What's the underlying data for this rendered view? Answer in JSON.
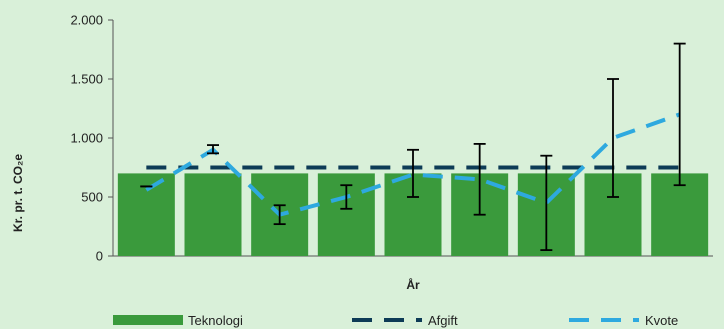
{
  "chart_data": {
    "type": "bar",
    "title": "",
    "xlabel": "År",
    "ylabel": "Kr. pr. t. CO₂e",
    "ylim": [
      0,
      2000
    ],
    "yticks": [
      0,
      500,
      1000,
      1500,
      2000
    ],
    "ytick_labels": [
      "0",
      "500",
      "1.000",
      "1.500",
      "2.000"
    ],
    "grid": false,
    "legend_position": "bottom",
    "categories": [
      "",
      "",
      "",
      "",
      "",
      "",
      "",
      "",
      ""
    ],
    "series": [
      {
        "name": "Teknologi",
        "kind": "bar",
        "color": "#3a9a3c",
        "values": [
          700,
          700,
          700,
          700,
          700,
          700,
          700,
          700,
          700
        ]
      },
      {
        "name": "Afgift",
        "kind": "dashed-line",
        "color": "#0d3b56",
        "values": [
          750,
          750,
          750,
          750,
          750,
          750,
          750,
          750,
          750
        ]
      },
      {
        "name": "Kvote",
        "kind": "dashed-line",
        "color": "#2ea9df",
        "values": [
          560,
          900,
          350,
          500,
          690,
          650,
          450,
          1000,
          1200
        ],
        "error_low": [
          590,
          870,
          270,
          400,
          500,
          350,
          50,
          500,
          600
        ],
        "error_high": [
          590,
          940,
          430,
          600,
          900,
          950,
          850,
          1500,
          1800
        ]
      }
    ]
  }
}
